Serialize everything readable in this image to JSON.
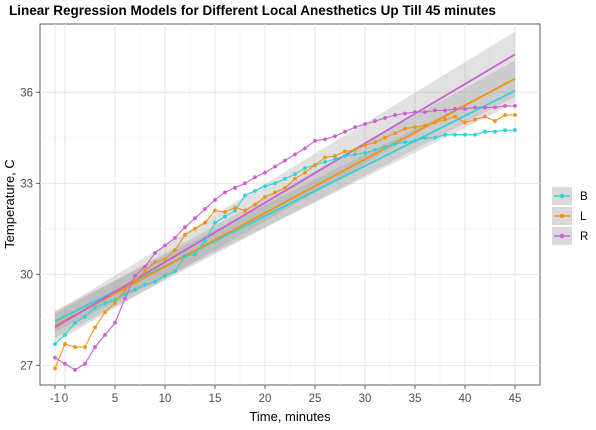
{
  "chart_data": {
    "type": "line",
    "title": "Linear Regression Models for Different Local Anesthetics Up Till 45 minutes",
    "xlabel": "Time, minutes",
    "ylabel": "Temperature, C",
    "xlim": [
      -2.5,
      47.5
    ],
    "ylim": [
      26.35,
      38.25
    ],
    "x_ticks": [
      -1,
      0,
      5,
      10,
      15,
      20,
      25,
      30,
      35,
      40,
      45
    ],
    "x_tick_labels": [
      "-1",
      "0",
      "5",
      "10",
      "15",
      "20",
      "25",
      "30",
      "35",
      "40",
      "45"
    ],
    "y_ticks": [
      27,
      30,
      33,
      36
    ],
    "y_tick_labels": [
      "27",
      "30",
      "33",
      "36"
    ],
    "x": [
      -1,
      0,
      1,
      2,
      3,
      4,
      5,
      6,
      7,
      8,
      9,
      10,
      11,
      12,
      13,
      14,
      15,
      16,
      17,
      18,
      19,
      20,
      21,
      22,
      23,
      24,
      25,
      26,
      27,
      28,
      29,
      30,
      31,
      32,
      33,
      34,
      35,
      36,
      37,
      38,
      39,
      40,
      41,
      42,
      43,
      44,
      45
    ],
    "series": [
      {
        "name": "B",
        "color": "#2ed3d6",
        "values": [
          27.7,
          28.0,
          28.4,
          28.6,
          28.9,
          29.05,
          29.15,
          29.35,
          29.5,
          29.65,
          29.75,
          29.95,
          30.1,
          30.6,
          30.65,
          31.1,
          31.7,
          31.9,
          32.1,
          32.6,
          32.75,
          32.9,
          33.0,
          33.15,
          33.3,
          33.5,
          33.6,
          33.7,
          33.8,
          33.9,
          33.95,
          34.0,
          34.1,
          34.2,
          34.3,
          34.35,
          34.4,
          34.5,
          34.5,
          34.6,
          34.6,
          34.6,
          34.6,
          34.7,
          34.7,
          34.75,
          34.75
        ],
        "fit": [
          28.45,
          36.05
        ],
        "band_halfwidth": [
          0.35,
          0.4
        ]
      },
      {
        "name": "L",
        "color": "#ef9313",
        "values": [
          26.9,
          27.7,
          27.6,
          27.6,
          28.25,
          28.75,
          29.05,
          29.5,
          29.8,
          30.1,
          30.4,
          30.5,
          30.8,
          31.3,
          31.5,
          31.7,
          32.1,
          32.05,
          32.2,
          32.1,
          32.3,
          32.55,
          32.7,
          32.85,
          33.15,
          33.35,
          33.6,
          33.85,
          33.9,
          34.05,
          34.1,
          34.25,
          34.35,
          34.5,
          34.65,
          34.8,
          34.85,
          34.9,
          35.0,
          35.1,
          35.2,
          35.0,
          35.1,
          35.2,
          35.05,
          35.25,
          35.25
        ],
        "fit": [
          28.3,
          36.45
        ],
        "band_halfwidth": [
          0.4,
          0.6
        ]
      },
      {
        "name": "R",
        "color": "#cc5fd0",
        "values": [
          27.25,
          27.05,
          26.85,
          27.05,
          27.6,
          28.0,
          28.4,
          29.2,
          29.95,
          30.25,
          30.7,
          30.95,
          31.2,
          31.55,
          31.85,
          32.15,
          32.45,
          32.7,
          32.85,
          33.0,
          33.2,
          33.35,
          33.55,
          33.75,
          33.95,
          34.15,
          34.4,
          34.45,
          34.55,
          34.7,
          34.85,
          34.95,
          35.05,
          35.15,
          35.25,
          35.3,
          35.35,
          35.35,
          35.4,
          35.4,
          35.45,
          35.45,
          35.5,
          35.5,
          35.5,
          35.55,
          35.55
        ],
        "fit": [
          28.25,
          37.25
        ],
        "band_halfwidth": [
          0.5,
          0.75
        ]
      }
    ],
    "grid": true,
    "legend_position": "right"
  }
}
